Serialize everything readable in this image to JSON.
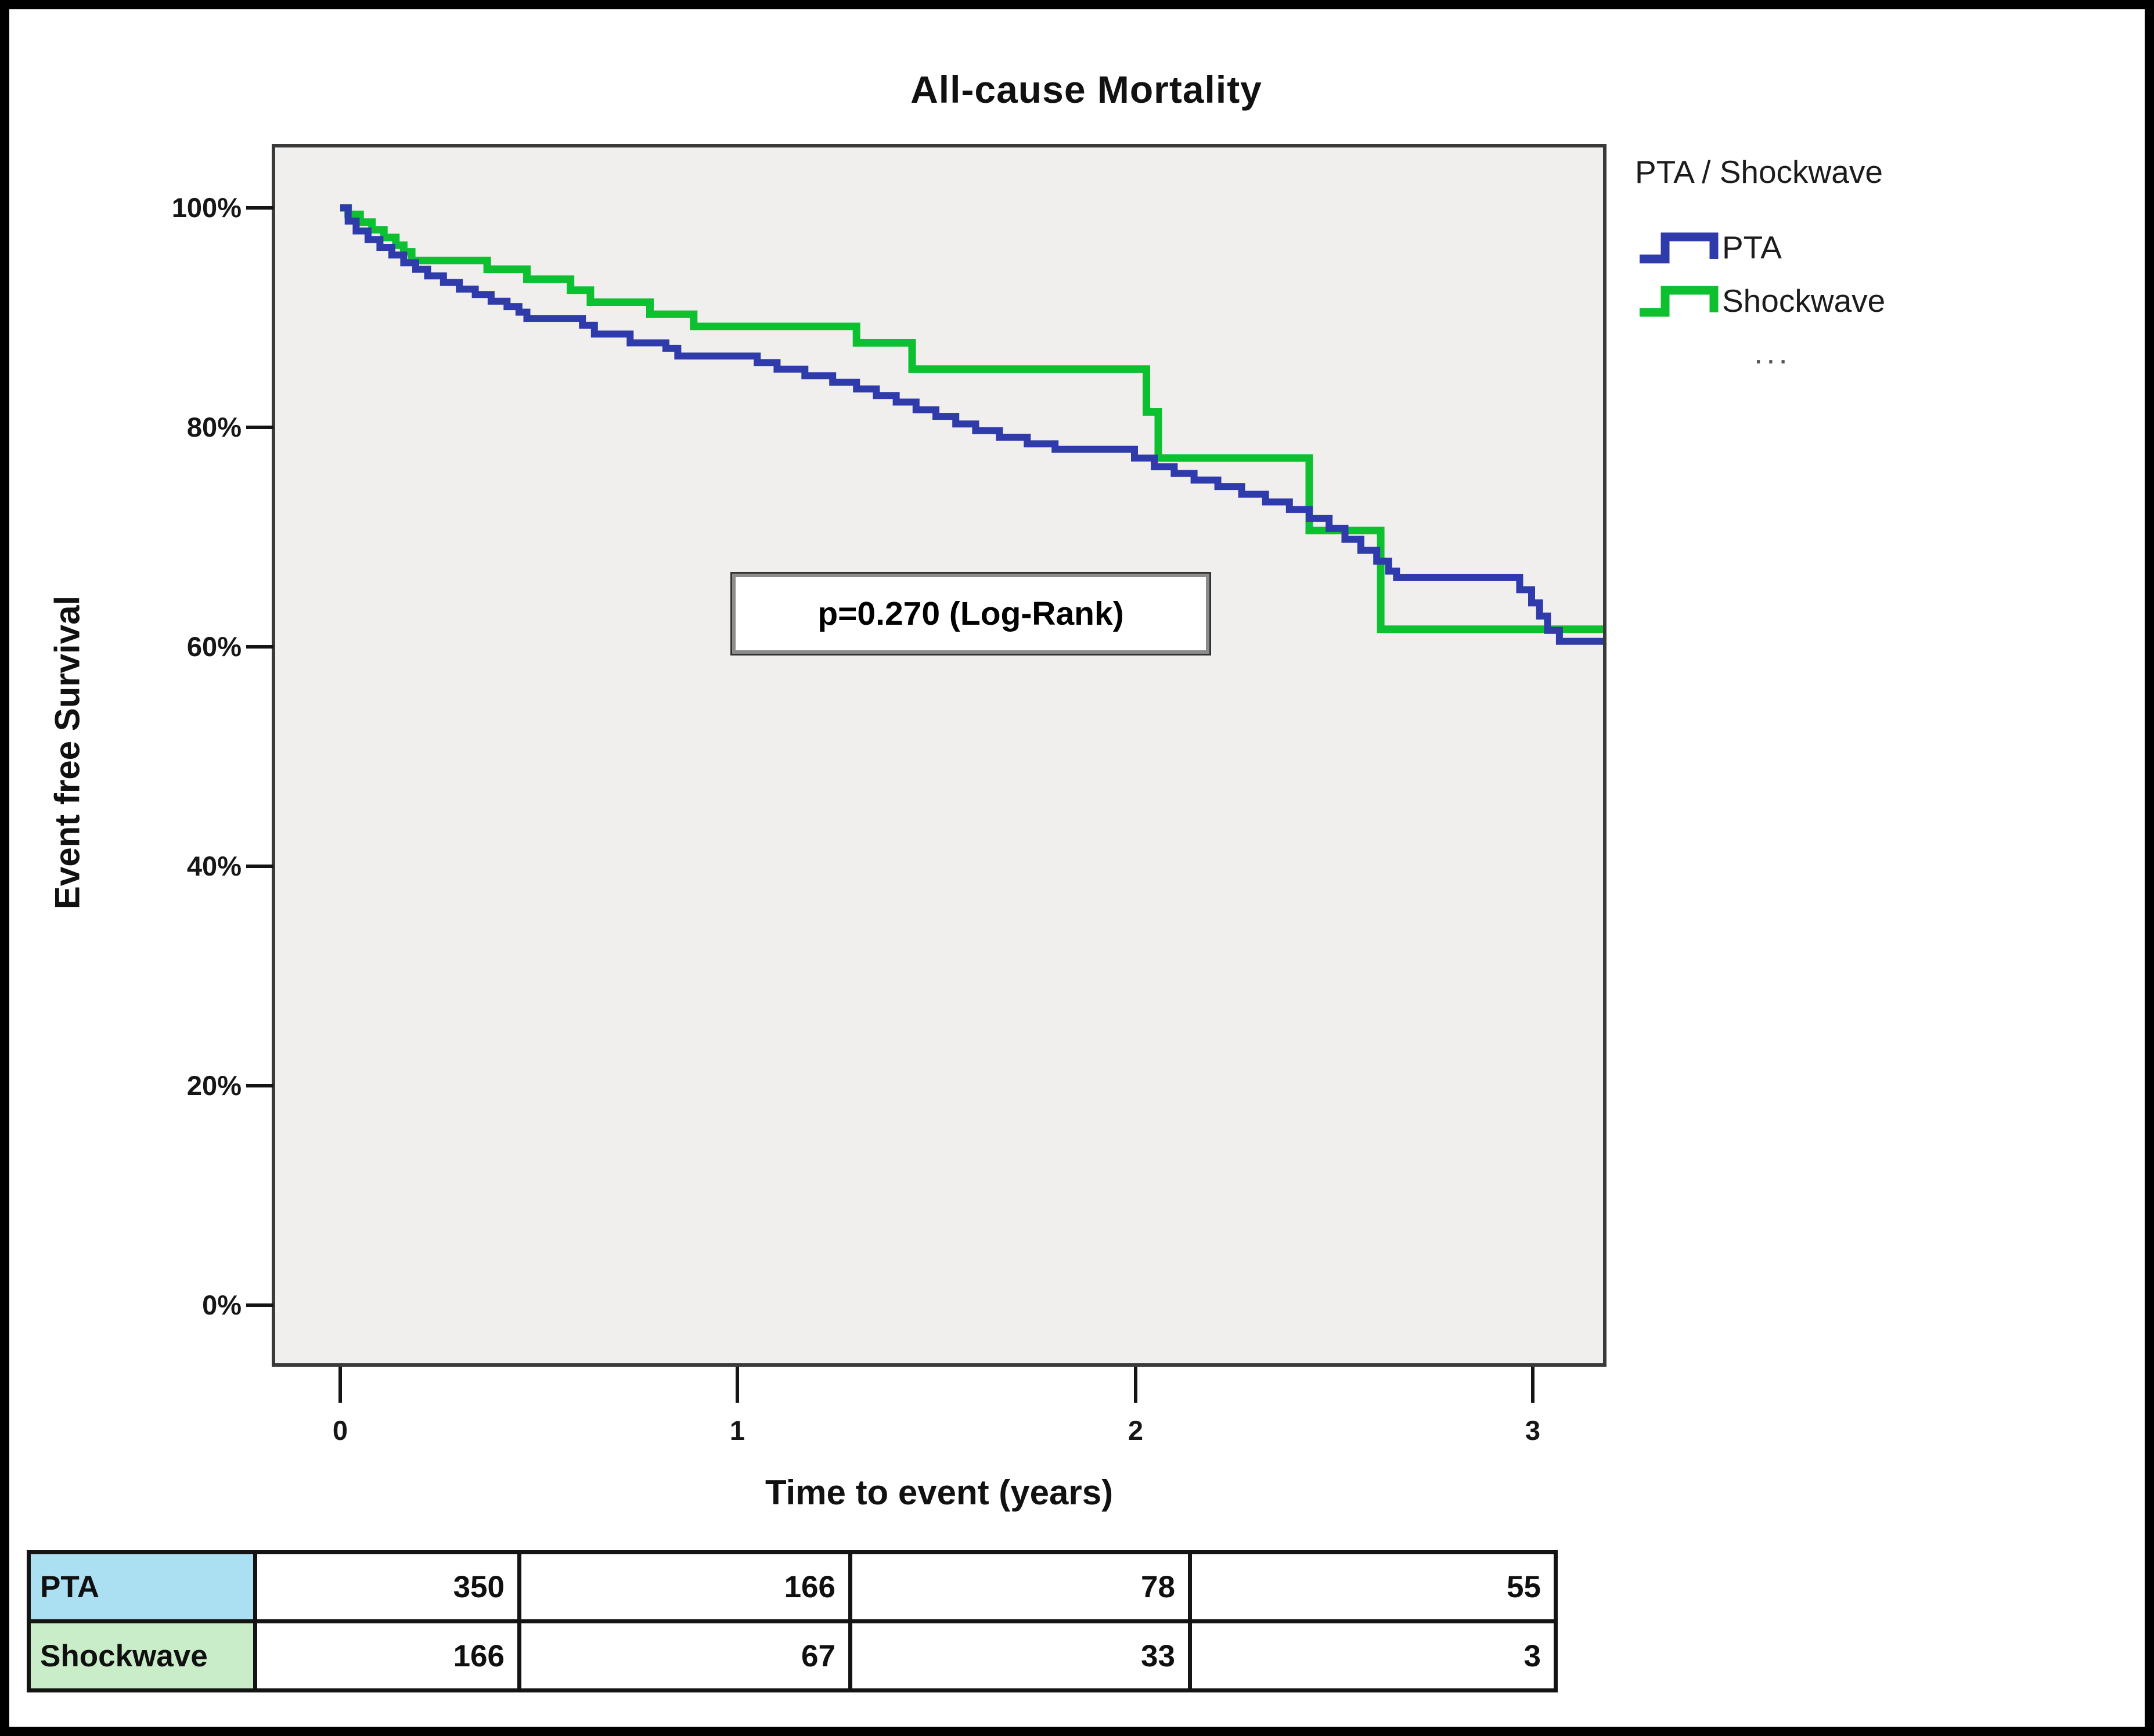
{
  "window": {
    "bg": "#ffffff",
    "border_color": "#000000"
  },
  "chart": {
    "title": "All-cause Mortality",
    "plot_bg": "#f0efee",
    "plot_border_color": "#3a3a3a",
    "tick_color": "#141414"
  },
  "y_axis": {
    "label": "Event free Survival",
    "ticks": [
      "100%",
      "80%",
      "60%",
      "40%",
      "20%",
      "0%"
    ]
  },
  "x_axis": {
    "label": "Time to event (years)",
    "ticks": [
      "0",
      "1",
      "2",
      "3"
    ]
  },
  "annotation": {
    "text": "p=0.270 (Log-Rank)"
  },
  "legend": {
    "title": "PTA / Shockwave",
    "entries": [
      {
        "label": "PTA",
        "color": "#2f3aab"
      },
      {
        "label": "Shockwave",
        "color": "#0cc030"
      }
    ],
    "overflow": "..."
  },
  "chart_data": {
    "type": "line",
    "subtype": "kaplan-meier-step",
    "title": "All-cause Mortality",
    "xlabel": "Time to event (years)",
    "ylabel": "Event free Survival",
    "xlim": [
      0,
      3.19
    ],
    "ylim_pct": [
      0,
      100
    ],
    "x_ticks": [
      0,
      1,
      2,
      3
    ],
    "y_ticks_pct": [
      100,
      80,
      60,
      40,
      20,
      0
    ],
    "grid": false,
    "legend_position": "top-right-outside",
    "p_value_annotation": "p=0.270 (Log-Rank)",
    "x_max": 3.185,
    "series": [
      {
        "name": "PTA",
        "color": "#2f3aab",
        "stroke_width": 12,
        "points": [
          [
            0,
            100
          ],
          [
            0.02,
            98.8
          ],
          [
            0.04,
            97.9
          ],
          [
            0.07,
            97.1
          ],
          [
            0.1,
            96.4
          ],
          [
            0.13,
            95.7
          ],
          [
            0.16,
            95.0
          ],
          [
            0.19,
            94.4
          ],
          [
            0.22,
            93.8
          ],
          [
            0.26,
            93.2
          ],
          [
            0.3,
            92.6
          ],
          [
            0.34,
            92.1
          ],
          [
            0.38,
            91.5
          ],
          [
            0.42,
            91.0
          ],
          [
            0.45,
            90.5
          ],
          [
            0.47,
            89.9
          ],
          [
            0.61,
            89.3
          ],
          [
            0.64,
            88.5
          ],
          [
            0.73,
            87.7
          ],
          [
            0.82,
            87.2
          ],
          [
            0.85,
            86.5
          ],
          [
            1.05,
            85.9
          ],
          [
            1.1,
            85.3
          ],
          [
            1.17,
            84.7
          ],
          [
            1.24,
            84.1
          ],
          [
            1.3,
            83.5
          ],
          [
            1.35,
            82.9
          ],
          [
            1.4,
            82.3
          ],
          [
            1.45,
            81.6
          ],
          [
            1.5,
            81.0
          ],
          [
            1.55,
            80.3
          ],
          [
            1.6,
            79.7
          ],
          [
            1.66,
            79.1
          ],
          [
            1.73,
            78.5
          ],
          [
            1.8,
            78.0
          ],
          [
            2.0,
            77.2
          ],
          [
            2.05,
            76.4
          ],
          [
            2.1,
            75.8
          ],
          [
            2.15,
            75.2
          ],
          [
            2.21,
            74.6
          ],
          [
            2.27,
            73.9
          ],
          [
            2.33,
            73.2
          ],
          [
            2.39,
            72.5
          ],
          [
            2.44,
            71.7
          ],
          [
            2.49,
            70.8
          ],
          [
            2.53,
            69.8
          ],
          [
            2.57,
            68.8
          ],
          [
            2.61,
            67.8
          ],
          [
            2.64,
            66.9
          ],
          [
            2.66,
            66.3
          ],
          [
            2.97,
            65.2
          ],
          [
            3.0,
            64.0
          ],
          [
            3.02,
            62.8
          ],
          [
            3.04,
            61.5
          ],
          [
            3.07,
            60.5
          ]
        ]
      },
      {
        "name": "Shockwave",
        "color": "#0cc030",
        "stroke_width": 13,
        "points": [
          [
            0,
            100
          ],
          [
            0.02,
            99.4
          ],
          [
            0.05,
            98.7
          ],
          [
            0.08,
            98.0
          ],
          [
            0.11,
            97.3
          ],
          [
            0.14,
            96.6
          ],
          [
            0.16,
            96.0
          ],
          [
            0.18,
            95.2
          ],
          [
            0.37,
            94.4
          ],
          [
            0.47,
            93.5
          ],
          [
            0.58,
            92.5
          ],
          [
            0.63,
            91.4
          ],
          [
            0.78,
            90.3
          ],
          [
            0.89,
            89.2
          ],
          [
            1.3,
            87.7
          ],
          [
            1.44,
            85.3
          ],
          [
            2.03,
            81.4
          ],
          [
            2.06,
            77.2
          ],
          [
            2.44,
            70.6
          ],
          [
            2.62,
            61.6
          ]
        ]
      }
    ],
    "risk_counts_at_ticks": {
      "times": [
        0,
        1,
        2,
        3
      ],
      "PTA": [
        350,
        166,
        78,
        55
      ],
      "Shockwave": [
        166,
        67,
        33,
        3
      ]
    }
  },
  "risk_table": {
    "rows": [
      {
        "label": "PTA",
        "label_bg": "#abdff2",
        "values": [
          "350",
          "166",
          "78",
          "55"
        ]
      },
      {
        "label": "Shockwave",
        "label_bg": "#c9ecc9",
        "values": [
          "166",
          "67",
          "33",
          "3"
        ]
      }
    ]
  }
}
